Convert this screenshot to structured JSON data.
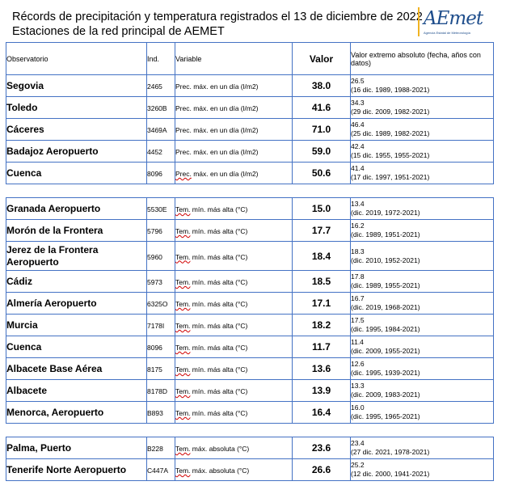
{
  "header": {
    "title": "Récords de precipitación y temperatura registrados el 13 de diciembre de 2022",
    "subtitle": "Estaciones de la red principal de AEMET"
  },
  "logo": {
    "text": "AEmet",
    "tagline": "Agencia Estatal de Meteorología"
  },
  "colors": {
    "table_border": "#4472c4",
    "logo_blue": "#1f4e8c",
    "logo_accent": "#f0b323"
  },
  "columns": {
    "observatorio": "Observatorio",
    "ind": "Ind.",
    "variable": "Variable",
    "valor": "Valor",
    "extremo": "Valor extremo absoluto (fecha, años con datos)"
  },
  "rows": [
    {
      "type": "data",
      "obs": "Segovia",
      "ind": "2465",
      "var_a": "Prec.",
      "var_b": " máx. en un día (l/m2)",
      "valor": "38.0",
      "ext_value": "26.5",
      "ext_detail": "(16 dic. 1989, 1988-2021)"
    },
    {
      "type": "data",
      "obs": "Toledo",
      "ind": "3260B",
      "var_a": "Prec.",
      "var_b": " máx. en un día (l/m2)",
      "valor": "41.6",
      "ext_value": "34.3",
      "ext_detail": "(29 dic. 2009, 1982-2021)"
    },
    {
      "type": "data",
      "obs": "Cáceres",
      "ind": "3469A",
      "var_a": "Prec.",
      "var_b": " máx. en un día (l/m2)",
      "valor": "71.0",
      "ext_value": "46.4",
      "ext_detail": "(25 dic. 1989, 1982-2021)"
    },
    {
      "type": "data",
      "obs": "Badajoz Aeropuerto",
      "ind": "4452",
      "var_a": "Prec.",
      "var_b": " máx. en un día (l/m2)",
      "valor": "59.0",
      "ext_value": "42.4",
      "ext_detail": "(15 dic. 1955, 1955-2021)"
    },
    {
      "type": "data",
      "obs": "Cuenca",
      "ind": "8096",
      "var_a": "Prec.",
      "var_b": " máx. en un día (l/m2)",
      "valor": "50.6",
      "ext_value": "41.4",
      "ext_detail": "(17 dic. 1997, 1951-2021)"
    },
    {
      "type": "spacer"
    },
    {
      "type": "data",
      "obs": "Granada Aeropuerto",
      "ind": "5530E",
      "var_a": "Tem.",
      "var_b": " mín. más alta (°C)",
      "valor": "15.0",
      "ext_value": "13.4",
      "ext_detail": "(dic. 2019, 1972-2021)"
    },
    {
      "type": "data",
      "obs": "Morón de la Frontera",
      "ind": "5796",
      "var_a": "Tem.",
      "var_b": " mín. más alta (°C)",
      "valor": "17.7",
      "ext_value": "16.2",
      "ext_detail": "(dic. 1989, 1951-2021)"
    },
    {
      "type": "data",
      "tall": true,
      "obs": "Jerez de la Frontera Aeropuerto",
      "ind": "5960",
      "var_a": "Tem.",
      "var_b": " mín. más alta (°C)",
      "valor": "18.4",
      "ext_value": "18.3",
      "ext_detail": "(dic. 2010, 1952-2021)"
    },
    {
      "type": "data",
      "obs": "Cádiz",
      "ind": "5973",
      "var_a": "Tem.",
      "var_b": " mín. más alta (°C)",
      "valor": "18.5",
      "ext_value": "17.8",
      "ext_detail": "(dic. 1989, 1955-2021)"
    },
    {
      "type": "data",
      "obs": "Almería Aeropuerto",
      "ind": "6325O",
      "var_a": "Tem.",
      "var_b": " mín. más alta (°C)",
      "valor": "17.1",
      "ext_value": "16.7",
      "ext_detail": "(dic. 2019, 1968-2021)"
    },
    {
      "type": "data",
      "obs": "Murcia",
      "ind": "7178I",
      "var_a": "Tem.",
      "var_b": " mín. más alta (°C)",
      "valor": "18.2",
      "ext_value": "17.5",
      "ext_detail": "(dic. 1995, 1984-2021)"
    },
    {
      "type": "data",
      "obs": "Cuenca",
      "ind": "8096",
      "var_a": "Tem.",
      "var_b": " mín. más alta (°C)",
      "valor": "11.7",
      "ext_value": "11.4",
      "ext_detail": "(dic. 2009, 1955-2021)"
    },
    {
      "type": "data",
      "obs": "Albacete Base Aérea",
      "ind": "8175",
      "var_a": "Tem.",
      "var_b": " mín. más alta (°C)",
      "valor": "13.6",
      "ext_value": "12.6",
      "ext_detail": "(dic. 1995, 1939-2021)"
    },
    {
      "type": "data",
      "obs": "Albacete",
      "ind": "8178D",
      "var_a": "Tem.",
      "var_b": " mín. más alta (°C)",
      "valor": "13.9",
      "ext_value": "13.3",
      "ext_detail": "(dic. 2009, 1983-2021)"
    },
    {
      "type": "data",
      "obs": "Menorca, Aeropuerto",
      "ind": "B893",
      "var_a": "Tem.",
      "var_b": " mín. más alta (°C)",
      "valor": "16.4",
      "ext_value": "16.0",
      "ext_detail": "(dic. 1995, 1965-2021)"
    },
    {
      "type": "spacer"
    },
    {
      "type": "data",
      "obs": "Palma, Puerto",
      "ind": "B228",
      "var_a": "Tem.",
      "var_b": " máx. absoluta (°C)",
      "valor": "23.6",
      "ext_value": "23.4",
      "ext_detail": "(27 dic. 2021, 1978-2021)"
    },
    {
      "type": "data",
      "obs": "Tenerife Norte Aeropuerto",
      "ind": "C447A",
      "var_a": "Tem.",
      "var_b": " máx. absoluta (°C)",
      "valor": "26.6",
      "ext_value": "25.2",
      "ext_detail": "(12 dic. 2000, 1941-2021)"
    }
  ]
}
